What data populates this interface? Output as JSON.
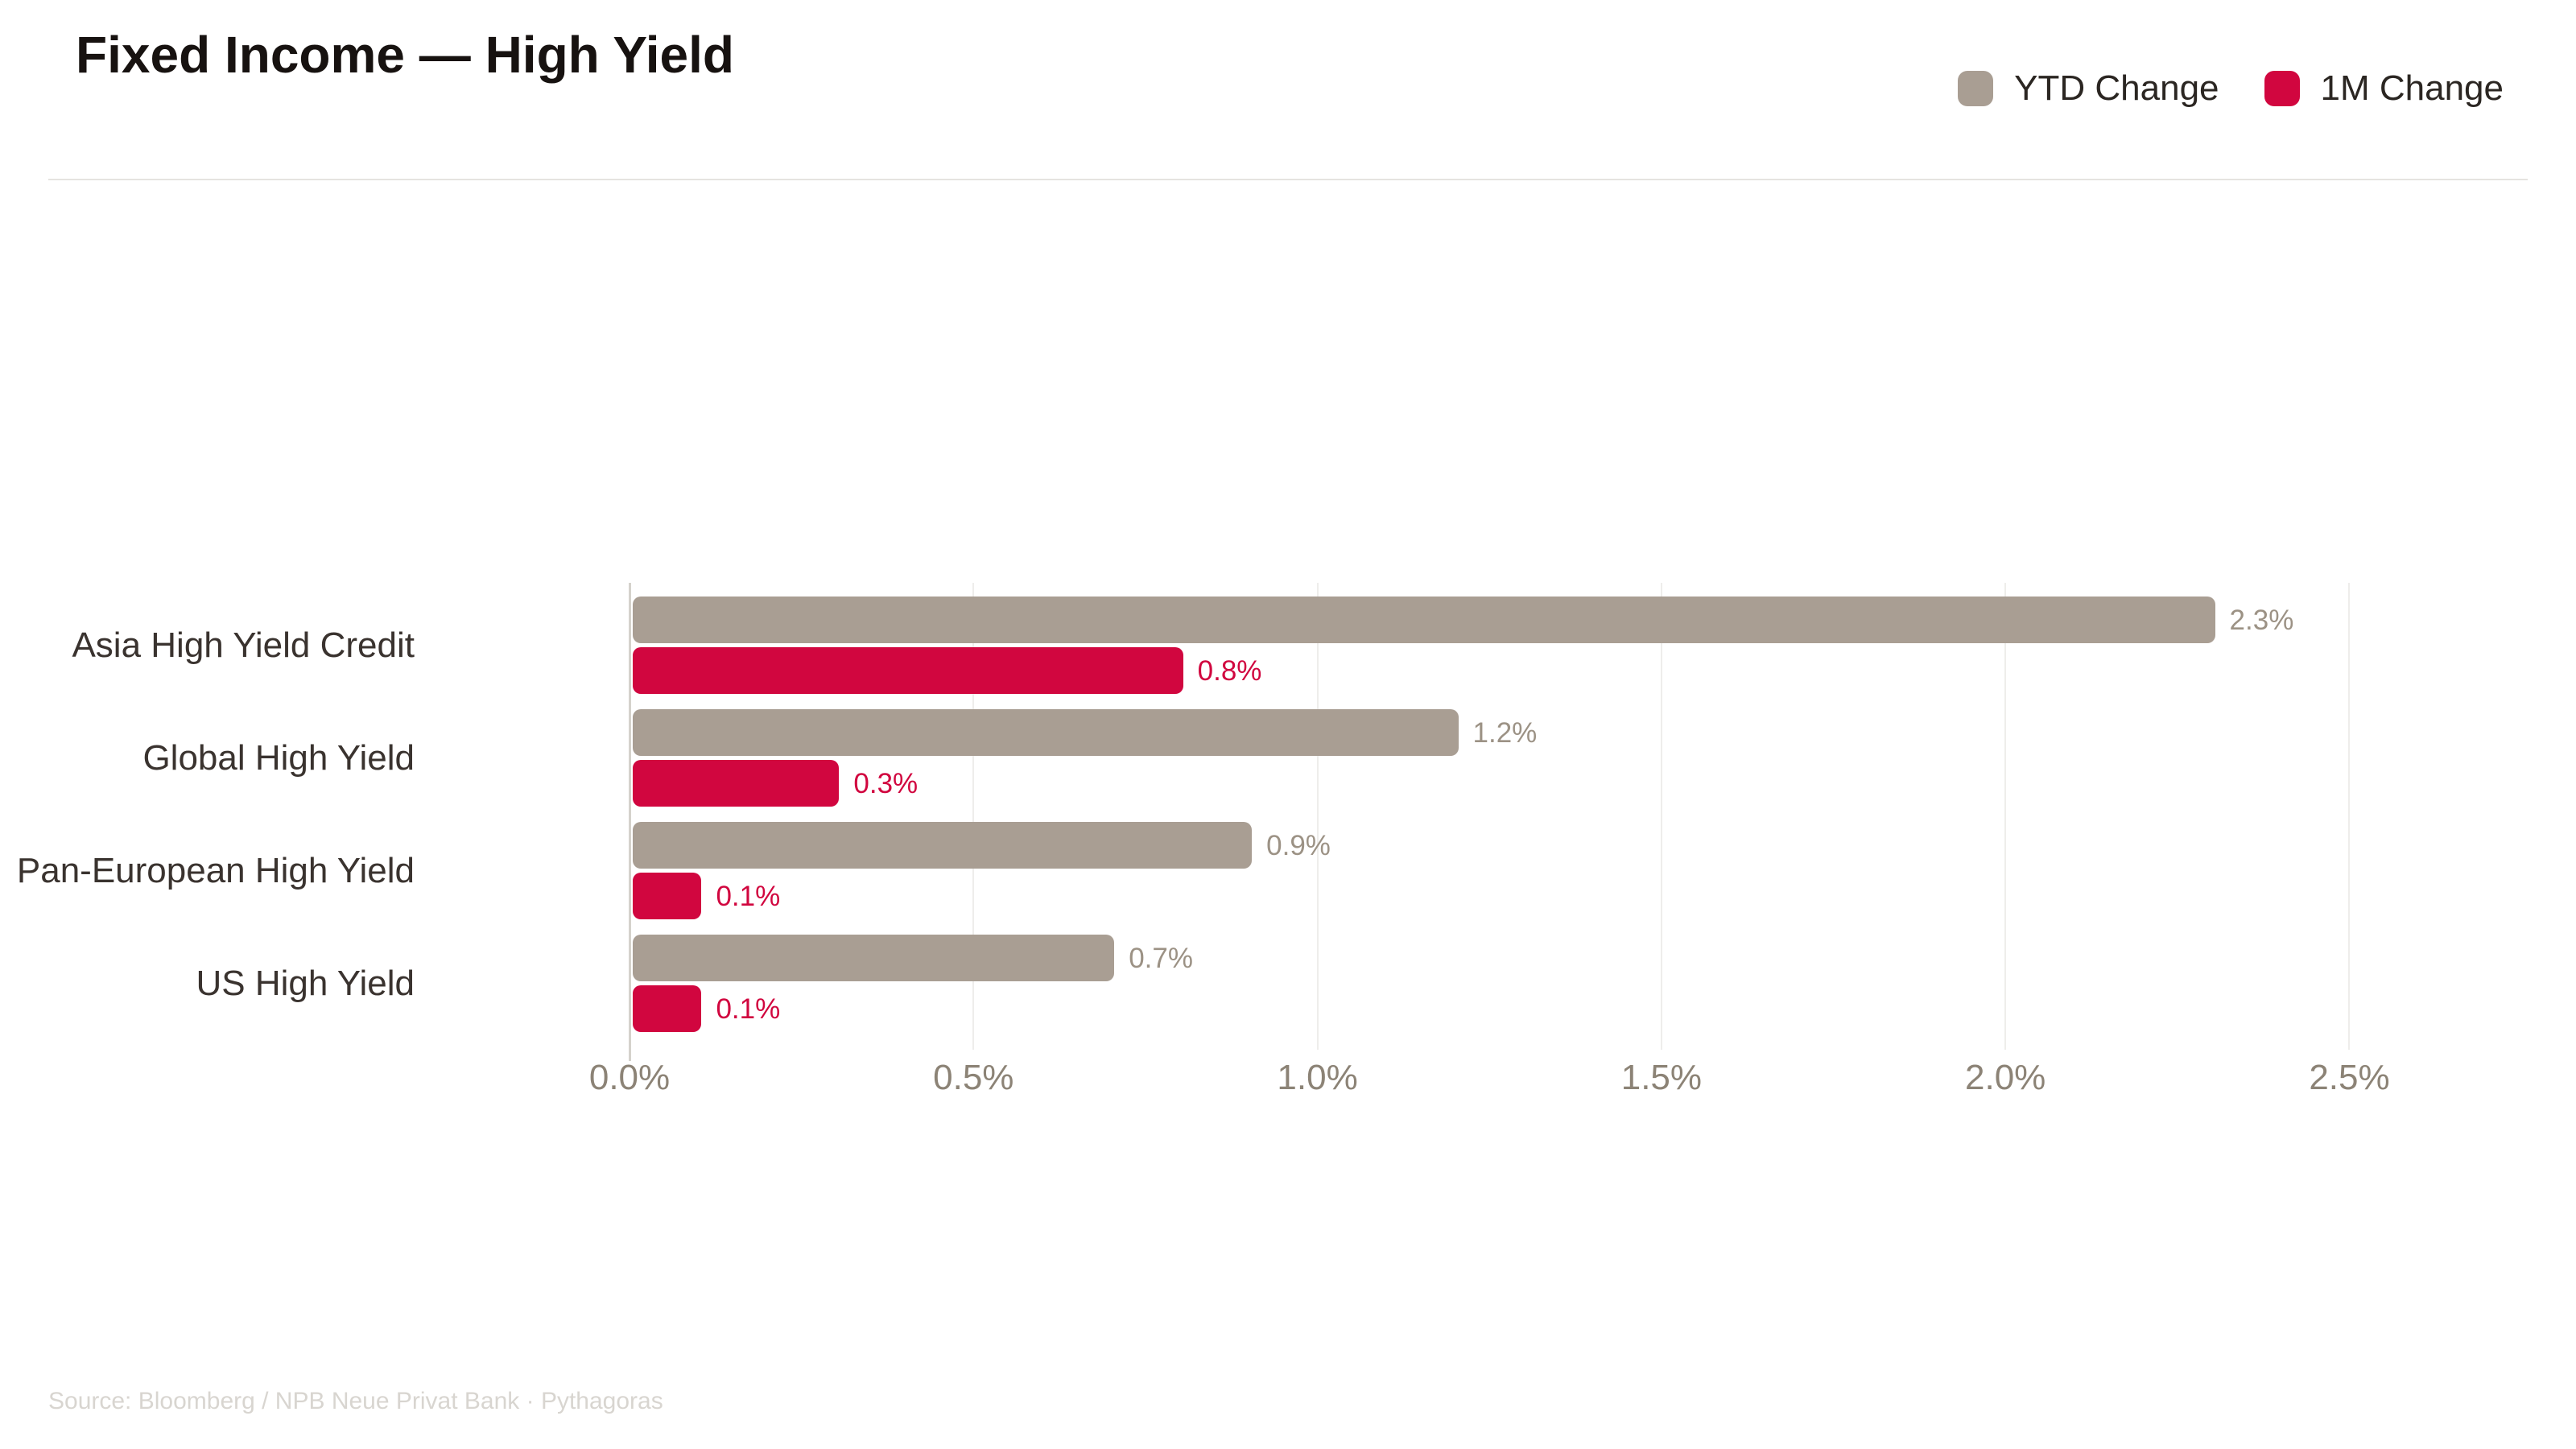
{
  "header": {
    "title": "Fixed Income — High Yield"
  },
  "legend": [
    {
      "label": "YTD Change",
      "color": "#a99e93"
    },
    {
      "label": "1M Change",
      "color": "#d1063f"
    }
  ],
  "footer": {
    "source": "Source: Bloomberg / NPB Neue Privat Bank · Pythagoras"
  },
  "chart_data": {
    "type": "bar",
    "orientation": "horizontal",
    "title": "Fixed Income — High Yield",
    "categories": [
      "Asia High Yield Credit",
      "Global High Yield",
      "Pan-European High Yield",
      "US High Yield"
    ],
    "series": [
      {
        "name": "YTD Change",
        "color": "#a99e93",
        "value_label_color": "#9c9285",
        "values": [
          2.3,
          1.2,
          0.9,
          0.7
        ],
        "labels": [
          "2.3%",
          "1.2%",
          "0.9%",
          "0.7%"
        ]
      },
      {
        "name": "1M Change",
        "color": "#d1063f",
        "value_label_color": "#d1063f",
        "values": [
          0.8,
          0.3,
          0.1,
          0.1
        ],
        "labels": [
          "0.8%",
          "0.3%",
          "0.1%",
          "0.1%"
        ]
      }
    ],
    "xlabel": "",
    "ylabel": "",
    "x_ticks": [
      "0.0%",
      "0.5%",
      "1.0%",
      "1.5%",
      "2.0%",
      "2.5%"
    ],
    "x_tick_values": [
      0,
      0.5,
      1.0,
      1.5,
      2.0,
      2.5
    ],
    "xlim": [
      0,
      2.572
    ],
    "grid": true,
    "legend_position": "top-right"
  }
}
